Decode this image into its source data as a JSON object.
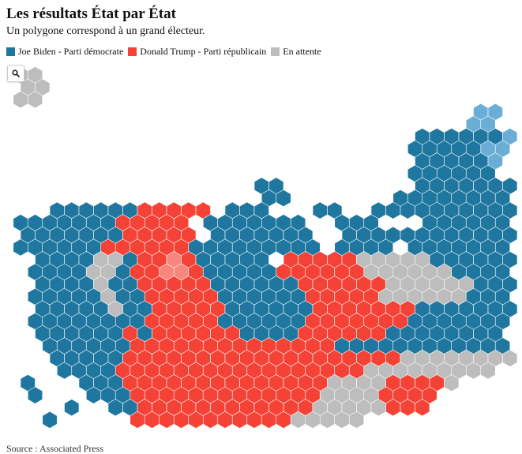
{
  "header": {
    "title": "Les résultats État par État",
    "subtitle": "Un polygone correspond à un grand électeur."
  },
  "legend": [
    {
      "label": "Joe Biden - Parti démocrate",
      "color": "#1f77a0"
    },
    {
      "label": "Donald Trump - Parti républicain",
      "color": "#f44336"
    },
    {
      "label": "En attente",
      "color": "#bdbdbd"
    }
  ],
  "highlight_colors": {
    "light_blue": "#6aaed6",
    "light_red": "#f7867d"
  },
  "controls": {
    "search_icon": "search-icon"
  },
  "footer": {
    "source": "Source : Associated Press"
  }
}
